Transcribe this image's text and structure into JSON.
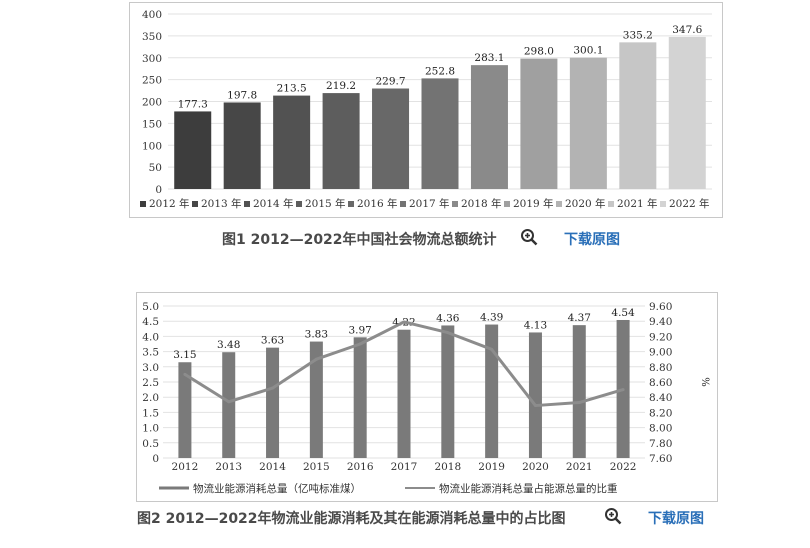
{
  "figure1": {
    "caption": "图1 2012—2022年中国社会物流总额统计",
    "download_label": "下载原图",
    "zoom_icon": "zoom-in-icon",
    "chart_data": {
      "type": "bar",
      "title": "",
      "categories": [
        "2012 年",
        "2013 年",
        "2014 年",
        "2015 年",
        "2016 年",
        "2017 年",
        "2018 年",
        "2019 年",
        "2020 年",
        "2021 年",
        "2022 年"
      ],
      "values": [
        177.3,
        197.8,
        213.5,
        219.2,
        229.7,
        252.8,
        283.1,
        298.0,
        300.1,
        335.2,
        347.6
      ],
      "value_labels": [
        "177.3",
        "197.8",
        "213.5",
        "219.2",
        "229.7",
        "252.8",
        "283.1",
        "298.0",
        "300.1",
        "335.2",
        "347.6"
      ],
      "colors": [
        "#3d3d3d",
        "#474747",
        "#525252",
        "#5d5d5d",
        "#686868",
        "#737373",
        "#8a8a8a",
        "#a0a0a0",
        "#b3b3b3",
        "#c6c6c6",
        "#d3d3d3"
      ],
      "ylim": [
        0,
        400
      ],
      "yticks": [
        "0",
        "50",
        "100",
        "150",
        "200",
        "250",
        "300",
        "350",
        "400"
      ],
      "grid": true,
      "legend": "bottom",
      "xlabel": "",
      "ylabel": ""
    }
  },
  "figure2": {
    "caption": "图2 2012—2022年物流业能源消耗及其在能源消耗总量中的占比图",
    "download_label": "下载原图",
    "zoom_icon": "zoom-in-icon",
    "chart_data": {
      "type": "bar",
      "title": "",
      "categories": [
        "2012",
        "2013",
        "2014",
        "2015",
        "2016",
        "2017",
        "2018",
        "2019",
        "2020",
        "2021",
        "2022"
      ],
      "series": [
        {
          "name": "物流业能源消耗总量（亿吨标准煤）",
          "type": "bar",
          "axis": "left",
          "values": [
            3.15,
            3.48,
            3.63,
            3.83,
            3.97,
            4.22,
            4.36,
            4.39,
            4.13,
            4.37,
            4.54
          ],
          "value_labels": [
            "3.15",
            "3.48",
            "3.63",
            "3.83",
            "3.97",
            "4.22",
            "4.36",
            "4.39",
            "4.13",
            "4.37",
            "4.54"
          ],
          "color": "#7a7a7a"
        },
        {
          "name": "物流业能源消耗总量占能源总量的比重",
          "type": "line",
          "axis": "right",
          "values": [
            8.7,
            8.34,
            8.52,
            8.9,
            9.1,
            9.39,
            9.25,
            9.03,
            8.29,
            8.33,
            8.5
          ],
          "color": "#8c8c8c"
        }
      ],
      "y_left": {
        "ylim": [
          0,
          5.0
        ],
        "ticks": [
          "0",
          "0.5",
          "1.0",
          "1.5",
          "2.0",
          "2.5",
          "3.0",
          "3.5",
          "4.0",
          "4.5",
          "5.0"
        ]
      },
      "y_right": {
        "ylim": [
          7.6,
          9.6
        ],
        "ticks": [
          "7.60",
          "7.80",
          "8.00",
          "8.20",
          "8.40",
          "8.60",
          "8.80",
          "9.00",
          "9.20",
          "9.40",
          "9.60"
        ],
        "label": "%"
      },
      "grid": true,
      "legend": "bottom",
      "xlabel": ""
    }
  }
}
